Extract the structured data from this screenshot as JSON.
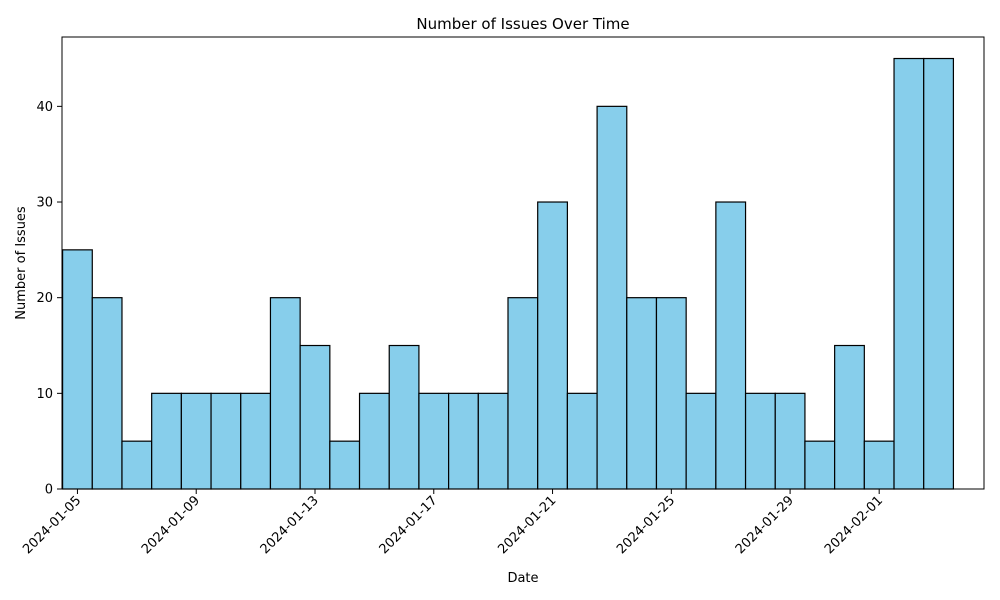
{
  "chart_data": {
    "type": "bar",
    "title": "Number of Issues Over Time",
    "xlabel": "Date",
    "ylabel": "Number of Issues",
    "bar_color": "#87CEEB",
    "bar_edge_color": "#000000",
    "categories": [
      "2024-01-05",
      "2024-01-06",
      "2024-01-07",
      "2024-01-08",
      "2024-01-09",
      "2024-01-10",
      "2024-01-11",
      "2024-01-12",
      "2024-01-13",
      "2024-01-14",
      "2024-01-15",
      "2024-01-16",
      "2024-01-17",
      "2024-01-18",
      "2024-01-19",
      "2024-01-20",
      "2024-01-21",
      "2024-01-22",
      "2024-01-23",
      "2024-01-24",
      "2024-01-25",
      "2024-01-26",
      "2024-01-27",
      "2024-01-28",
      "2024-01-29",
      "2024-01-30",
      "2024-01-31",
      "2024-02-01",
      "2024-02-02",
      "2024-02-03"
    ],
    "values": [
      25,
      20,
      5,
      10,
      10,
      10,
      10,
      20,
      15,
      5,
      10,
      15,
      10,
      10,
      10,
      20,
      30,
      10,
      40,
      20,
      20,
      10,
      30,
      10,
      10,
      5,
      15,
      5,
      45,
      45
    ],
    "x_ticks": [
      "2024-01-05",
      "2024-01-09",
      "2024-01-13",
      "2024-01-17",
      "2024-01-21",
      "2024-01-25",
      "2024-01-29",
      "2024-02-01"
    ],
    "y_ticks": [
      0,
      10,
      20,
      30,
      40
    ],
    "ylim": [
      0,
      47.25
    ],
    "xlim": [
      "2024-01-04",
      "2024-02-04"
    ],
    "grid": false,
    "legend": false
  }
}
